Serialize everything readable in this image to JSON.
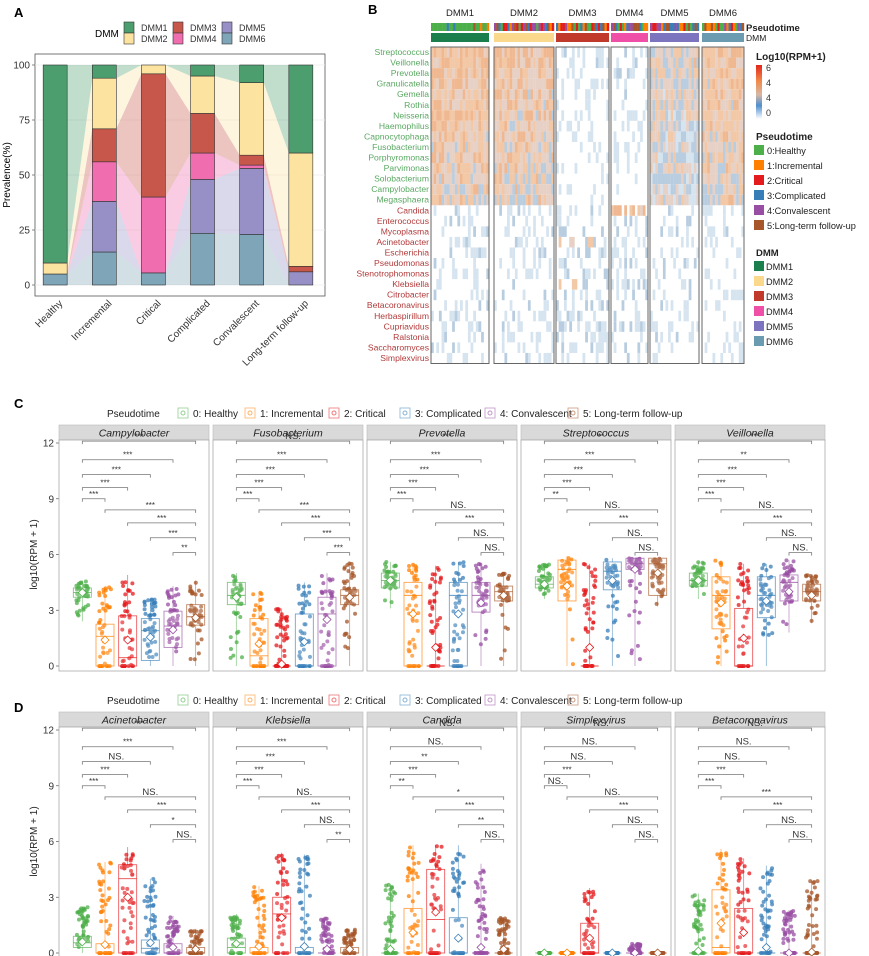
{
  "chart_data": [
    {
      "panel": "A",
      "type": "bar",
      "stacked": true,
      "panel_label": "A",
      "legend_title": "DMM",
      "legend_position": "top",
      "ylabel": "Prevalence(%)",
      "xlabel": "",
      "ylim": [
        0,
        100
      ],
      "yticks": [
        0,
        25,
        50,
        75,
        100
      ],
      "categories": [
        "Healthy",
        "Incremental",
        "Critical",
        "Complicated",
        "Convalescent",
        "Long-term follow-up"
      ],
      "series": [
        {
          "name": "DMM6",
          "color": "#7fa5b8",
          "values": [
            5,
            15,
            5.5,
            23.5,
            23,
            0
          ]
        },
        {
          "name": "DMM5",
          "color": "#9690c6",
          "values": [
            0,
            23,
            0,
            24.5,
            30,
            6
          ]
        },
        {
          "name": "DMM4",
          "color": "#f06daf",
          "values": [
            0,
            18,
            34.5,
            12,
            1.5,
            0
          ]
        },
        {
          "name": "DMM3",
          "color": "#c8574b",
          "values": [
            0,
            15,
            56,
            18,
            4.5,
            2.5
          ]
        },
        {
          "name": "DMM2",
          "color": "#fde3a0",
          "values": [
            5,
            23,
            4,
            17,
            33,
            51.5
          ]
        },
        {
          "name": "DMM1",
          "color": "#4d9e6e",
          "values": [
            90,
            6,
            0,
            5,
            8,
            40
          ]
        }
      ],
      "legend_order": [
        "DMM1",
        "DMM2",
        "DMM3",
        "DMM4",
        "DMM5",
        "DMM6"
      ]
    },
    {
      "panel": "B",
      "type": "heatmap",
      "panel_label": "B",
      "column_groups": [
        "DMM1",
        "DMM2",
        "DMM3",
        "DMM4",
        "DMM5",
        "DMM6"
      ],
      "annotation_rows": [
        "Pseudotime",
        "DMM"
      ],
      "rows_green": [
        "Streptococcus",
        "Veillonella",
        "Prevotella",
        "Granulicatella",
        "Gemella",
        "Rothia",
        "Neisseria",
        "Haemophilus",
        "Capnocytophaga",
        "Fusobacterium",
        "Porphyromonas",
        "Parvimonas",
        "Solobacterium",
        "Campylobacter",
        "Megasphaera"
      ],
      "rows_red": [
        "Candida",
        "Enterococcus",
        "Mycoplasma",
        "Acinetobacter",
        "Escherichia",
        "Pseudomonas",
        "Stenotrophomonas",
        "Klebsiella",
        "Citrobacter",
        "Betacoronavirus",
        "Herbaspirillum",
        "Cupriavidus",
        "Ralstonia",
        "Saccharomyces",
        "Simplexvirus"
      ],
      "colorbar": {
        "title": "Log10(RPM+1)",
        "ticks": [
          "6",
          "4",
          "4",
          "0"
        ],
        "range": [
          0,
          6
        ]
      },
      "pseudotime_legend": {
        "title": "Pseudotime",
        "items": [
          {
            "label": "0:Healthy",
            "color": "#4daf4a"
          },
          {
            "label": "1:Incremental",
            "color": "#ff7f00"
          },
          {
            "label": "2:Critical",
            "color": "#e41a1c"
          },
          {
            "label": "3:Complicated",
            "color": "#377eb8"
          },
          {
            "label": "4:Convalescent",
            "color": "#984ea3"
          },
          {
            "label": "5:Long-term follow-up",
            "color": "#a65628"
          }
        ]
      },
      "dmm_legend": {
        "title": "DMM",
        "items": [
          {
            "label": "DMM1",
            "color": "#1b7f4d"
          },
          {
            "label": "DMM2",
            "color": "#fbd98c"
          },
          {
            "label": "DMM3",
            "color": "#c0392b"
          },
          {
            "label": "DMM4",
            "color": "#ef4fa6"
          },
          {
            "label": "DMM5",
            "color": "#7d74c0"
          },
          {
            "label": "DMM6",
            "color": "#6b9bb0"
          }
        ]
      },
      "group_mean_intensity": {
        "green_rows": [
          0.75,
          0.72,
          0.12,
          0.15,
          0.55,
          0.7
        ],
        "red_rows": [
          0.15,
          0.12,
          0.2,
          0.18,
          0.12,
          0.08
        ]
      }
    },
    {
      "panel": "C",
      "type": "box",
      "panel_label": "C",
      "legend_title": "Pseudotime",
      "legend_position": "top",
      "groups": [
        "0: Healthy",
        "1: Incremental",
        "2: Critical",
        "3: Complicated",
        "4: Convalescent",
        "5: Long-term follow-up"
      ],
      "group_colors": [
        "#4daf4a",
        "#ff7f00",
        "#e41a1c",
        "#377eb8",
        "#984ea3",
        "#a65628"
      ],
      "ylabel": "log10(RPM + 1)",
      "ylim": [
        0,
        12
      ],
      "yticks": [
        0,
        3,
        6,
        9,
        12
      ],
      "facets": [
        {
          "title": "Campylobacter",
          "boxes": [
            {
              "q1": 3.7,
              "med": 3.95,
              "q3": 4.2,
              "mean": 3.95,
              "max": 4.6,
              "min": 2.4
            },
            {
              "q1": 0,
              "med": 1.6,
              "q3": 2.25,
              "mean": 1.4,
              "max": 4.3,
              "min": 0
            },
            {
              "q1": 0,
              "med": 0.45,
              "q3": 2.7,
              "mean": 1.4,
              "max": 4.9,
              "min": 0
            },
            {
              "q1": 0.3,
              "med": 1.9,
              "q3": 2.55,
              "mean": 1.55,
              "max": 3.6,
              "min": 0
            },
            {
              "q1": 1.0,
              "med": 2.15,
              "q3": 2.95,
              "mean": 1.95,
              "max": 4.3,
              "min": 0
            },
            {
              "q1": 2.2,
              "med": 2.65,
              "q3": 3.3,
              "mean": 2.6,
              "max": 4.6,
              "min": 0
            }
          ],
          "sig": [
            "***",
            "***",
            "***",
            "***",
            "***",
            "***",
            "***",
            "***",
            "**"
          ]
        },
        {
          "title": "Fusobacterium",
          "boxes": [
            {
              "q1": 3.3,
              "med": 3.8,
              "q3": 4.5,
              "mean": 3.7,
              "max": 5.0,
              "min": 0
            },
            {
              "q1": 0,
              "med": 0.55,
              "q3": 2.55,
              "mean": 1.2,
              "max": 4.0,
              "min": 0
            },
            {
              "q1": 0,
              "med": 0,
              "q3": 0,
              "mean": 0.1,
              "max": 3.1,
              "min": 0
            },
            {
              "q1": 0,
              "med": 0,
              "q3": 2.8,
              "mean": 1.3,
              "max": 4.5,
              "min": 0
            },
            {
              "q1": 0,
              "med": 2.8,
              "q3": 3.7,
              "mean": 2.5,
              "max": 5.0,
              "min": 0
            },
            {
              "q1": 3.3,
              "med": 3.8,
              "q3": 4.1,
              "mean": 3.7,
              "max": 5.6,
              "min": 0
            }
          ],
          "sig": [
            "NS.",
            "***",
            "***",
            "***",
            "***",
            "***",
            "***",
            "***",
            "***"
          ]
        },
        {
          "title": "Prevotella",
          "boxes": [
            {
              "q1": 4.2,
              "med": 4.6,
              "q3": 5.0,
              "mean": 4.6,
              "max": 5.6,
              "min": 3.1
            },
            {
              "q1": 0,
              "med": 3.8,
              "q3": 4.5,
              "mean": 2.8,
              "max": 5.5,
              "min": 0
            },
            {
              "q1": 0,
              "med": 0,
              "q3": 0,
              "mean": 1.0,
              "max": 5.4,
              "min": 0
            },
            {
              "q1": 0,
              "med": 3.8,
              "q3": 4.5,
              "mean": 2.8,
              "max": 5.6,
              "min": 0
            },
            {
              "q1": 2.9,
              "med": 3.8,
              "q3": 4.5,
              "mean": 3.4,
              "max": 5.5,
              "min": 0
            },
            {
              "q1": 3.5,
              "med": 4.0,
              "q3": 4.3,
              "mean": 3.8,
              "max": 5.0,
              "min": 0
            }
          ],
          "sig": [
            "***",
            "***",
            "***",
            "***",
            "***",
            "NS.",
            "***",
            "NS.",
            "NS."
          ]
        },
        {
          "title": "Streptococcus",
          "boxes": [
            {
              "q1": 4.2,
              "med": 4.4,
              "q3": 4.8,
              "mean": 4.4,
              "max": 5.5,
              "min": 3.6
            },
            {
              "q1": 3.5,
              "med": 5.2,
              "q3": 5.7,
              "mean": 4.3,
              "max": 5.9,
              "min": 0
            },
            {
              "q1": 0,
              "med": 0,
              "q3": 0,
              "mean": 1.0,
              "max": 5.5,
              "min": 0
            },
            {
              "q1": 4.1,
              "med": 5.1,
              "q3": 5.6,
              "mean": 4.6,
              "max": 5.8,
              "min": 0
            },
            {
              "q1": 5.2,
              "med": 5.5,
              "q3": 5.8,
              "mean": 5.2,
              "max": 5.8,
              "min": 0
            },
            {
              "q1": 3.8,
              "med": 5.5,
              "q3": 5.8,
              "mean": 5.0,
              "max": 5.8,
              "min": 3.2
            }
          ],
          "sig": [
            "**",
            "***",
            "***",
            "***",
            "**",
            "NS.",
            "***",
            "NS.",
            "NS."
          ]
        },
        {
          "title": "Veillonella",
          "boxes": [
            {
              "q1": 4.3,
              "med": 4.6,
              "q3": 5.0,
              "mean": 4.6,
              "max": 5.6,
              "min": 3.6
            },
            {
              "q1": 2.0,
              "med": 3.8,
              "q3": 4.8,
              "mean": 3.4,
              "max": 5.7,
              "min": 0
            },
            {
              "q1": 0,
              "med": 0,
              "q3": 3.1,
              "mean": 1.5,
              "max": 5.5,
              "min": 0
            },
            {
              "q1": 2.6,
              "med": 3.8,
              "q3": 4.8,
              "mean": 3.5,
              "max": 5.5,
              "min": 0
            },
            {
              "q1": 3.5,
              "med": 4.5,
              "q3": 4.9,
              "mean": 4.0,
              "max": 5.7,
              "min": 1.8
            },
            {
              "q1": 3.5,
              "med": 4.0,
              "q3": 4.4,
              "mean": 3.8,
              "max": 4.9,
              "min": 2.3
            }
          ],
          "sig": [
            "***",
            "**",
            "***",
            "***",
            "***",
            "NS.",
            "***",
            "NS.",
            "NS."
          ]
        }
      ]
    },
    {
      "panel": "D",
      "type": "box",
      "panel_label": "D",
      "legend_title": "Pseudotime",
      "legend_position": "top",
      "groups": [
        "0: Healthy",
        "1: Incremental",
        "2: Critical",
        "3: Complicated",
        "4: Convalescent",
        "5: Long-term follow-up"
      ],
      "group_colors": [
        "#4daf4a",
        "#ff7f00",
        "#e41a1c",
        "#377eb8",
        "#984ea3",
        "#a65628"
      ],
      "ylabel": "log10(RPM + 1)",
      "ylim": [
        0,
        12
      ],
      "yticks": [
        0,
        3,
        6,
        9,
        12
      ],
      "facets": [
        {
          "title": "Acinetobacter",
          "boxes": [
            {
              "q1": 0.3,
              "med": 0.55,
              "q3": 0.9,
              "mean": 0.6,
              "max": 2.5,
              "min": 0
            },
            {
              "q1": 0,
              "med": 0,
              "q3": 0.5,
              "mean": 0.45,
              "max": 4.9,
              "min": 0
            },
            {
              "q1": 0,
              "med": 4.0,
              "q3": 4.75,
              "mean": 3.0,
              "max": 5.7,
              "min": 0
            },
            {
              "q1": 0,
              "med": 0.25,
              "q3": 0.7,
              "mean": 0.55,
              "max": 4.0,
              "min": 0
            },
            {
              "q1": 0,
              "med": 0,
              "q3": 0.5,
              "mean": 0.3,
              "max": 2.0,
              "min": 0
            },
            {
              "q1": 0,
              "med": 0,
              "q3": 0.3,
              "mean": 0.2,
              "max": 1.3,
              "min": 0
            }
          ],
          "sig": [
            "***",
            "***",
            "NS.",
            "***",
            "***",
            "NS.",
            "***",
            "*",
            "NS."
          ]
        },
        {
          "title": "Klebsiella",
          "boxes": [
            {
              "q1": 0,
              "med": 0.3,
              "q3": 0.8,
              "mean": 0.5,
              "max": 2.1,
              "min": 0
            },
            {
              "q1": 0,
              "med": 0,
              "q3": 0.3,
              "mean": 0.35,
              "max": 3.6,
              "min": 0
            },
            {
              "q1": 0,
              "med": 2.1,
              "q3": 3.0,
              "mean": 1.9,
              "max": 5.4,
              "min": 0
            },
            {
              "q1": 0,
              "med": 0,
              "q3": 0.3,
              "mean": 0.35,
              "max": 5.3,
              "min": 0
            },
            {
              "q1": 0,
              "med": 0,
              "q3": 0,
              "mean": 0.2,
              "max": 1.9,
              "min": 0
            },
            {
              "q1": 0,
              "med": 0,
              "q3": 0.3,
              "mean": 0.2,
              "max": 1.3,
              "min": 0
            }
          ],
          "sig": [
            "*",
            "***",
            "***",
            "***",
            "***",
            "NS.",
            "***",
            "NS.",
            "**"
          ]
        },
        {
          "title": "Candida",
          "boxes": [
            {
              "q1": 0,
              "med": 0,
              "q3": 0,
              "mean": 0.2,
              "max": 3.7,
              "min": 0
            },
            {
              "q1": 0,
              "med": 0,
              "q3": 2.4,
              "mean": 1.1,
              "max": 5.8,
              "min": 0
            },
            {
              "q1": 0,
              "med": 1.8,
              "q3": 4.5,
              "mean": 2.2,
              "max": 5.8,
              "min": 0
            },
            {
              "q1": 0,
              "med": 0,
              "q3": 1.9,
              "mean": 0.8,
              "max": 5.8,
              "min": 0
            },
            {
              "q1": 0,
              "med": 0,
              "q3": 0,
              "mean": 0.3,
              "max": 4.8,
              "min": 0
            },
            {
              "q1": 0,
              "med": 0,
              "q3": 0,
              "mean": 0.2,
              "max": 1.9,
              "min": 0
            }
          ],
          "sig": [
            "NS.",
            "NS.",
            "**",
            "***",
            "**",
            "*",
            "***",
            "**",
            "NS."
          ]
        },
        {
          "title": "Simplexvirus",
          "boxes": [
            {
              "q1": 0,
              "med": 0,
              "q3": 0,
              "mean": 0,
              "max": 0,
              "min": 0
            },
            {
              "q1": 0,
              "med": 0,
              "q3": 0,
              "mean": 0,
              "max": 0,
              "min": 0
            },
            {
              "q1": 0,
              "med": 0,
              "q3": 1.6,
              "mean": 0.8,
              "max": 3.5,
              "min": 0
            },
            {
              "q1": 0,
              "med": 0,
              "q3": 0,
              "mean": 0,
              "max": 0,
              "min": 0
            },
            {
              "q1": 0,
              "med": 0,
              "q3": 0,
              "mean": 0,
              "max": 0.5,
              "min": 0
            },
            {
              "q1": 0,
              "med": 0,
              "q3": 0,
              "mean": 0,
              "max": 0,
              "min": 0
            }
          ],
          "sig": [
            "NS.",
            "NS.",
            "NS.",
            "***",
            "NS.",
            "NS.",
            "***",
            "NS.",
            "NS."
          ]
        },
        {
          "title": "Betacoronavirus",
          "boxes": [
            {
              "q1": 0,
              "med": 0,
              "q3": 0,
              "mean": 0.1,
              "max": 3.2,
              "min": 0
            },
            {
              "q1": 0,
              "med": 0.3,
              "q3": 3.4,
              "mean": 1.6,
              "max": 5.6,
              "min": 0
            },
            {
              "q1": 0,
              "med": 0,
              "q3": 2.4,
              "mean": 1.1,
              "max": 5.1,
              "min": 0
            },
            {
              "q1": 0,
              "med": 0,
              "q3": 0,
              "mean": 0.3,
              "max": 4.7,
              "min": 0
            },
            {
              "q1": 0,
              "med": 0,
              "q3": 0,
              "mean": 0,
              "max": 2.3,
              "min": 0
            },
            {
              "q1": 0,
              "med": 0,
              "q3": 0,
              "mean": 0.05,
              "max": 3.9,
              "min": 0
            }
          ],
          "sig": [
            "NS.",
            "NS.",
            "NS.",
            "***",
            "***",
            "***",
            "***",
            "NS.",
            "NS."
          ]
        }
      ]
    }
  ]
}
